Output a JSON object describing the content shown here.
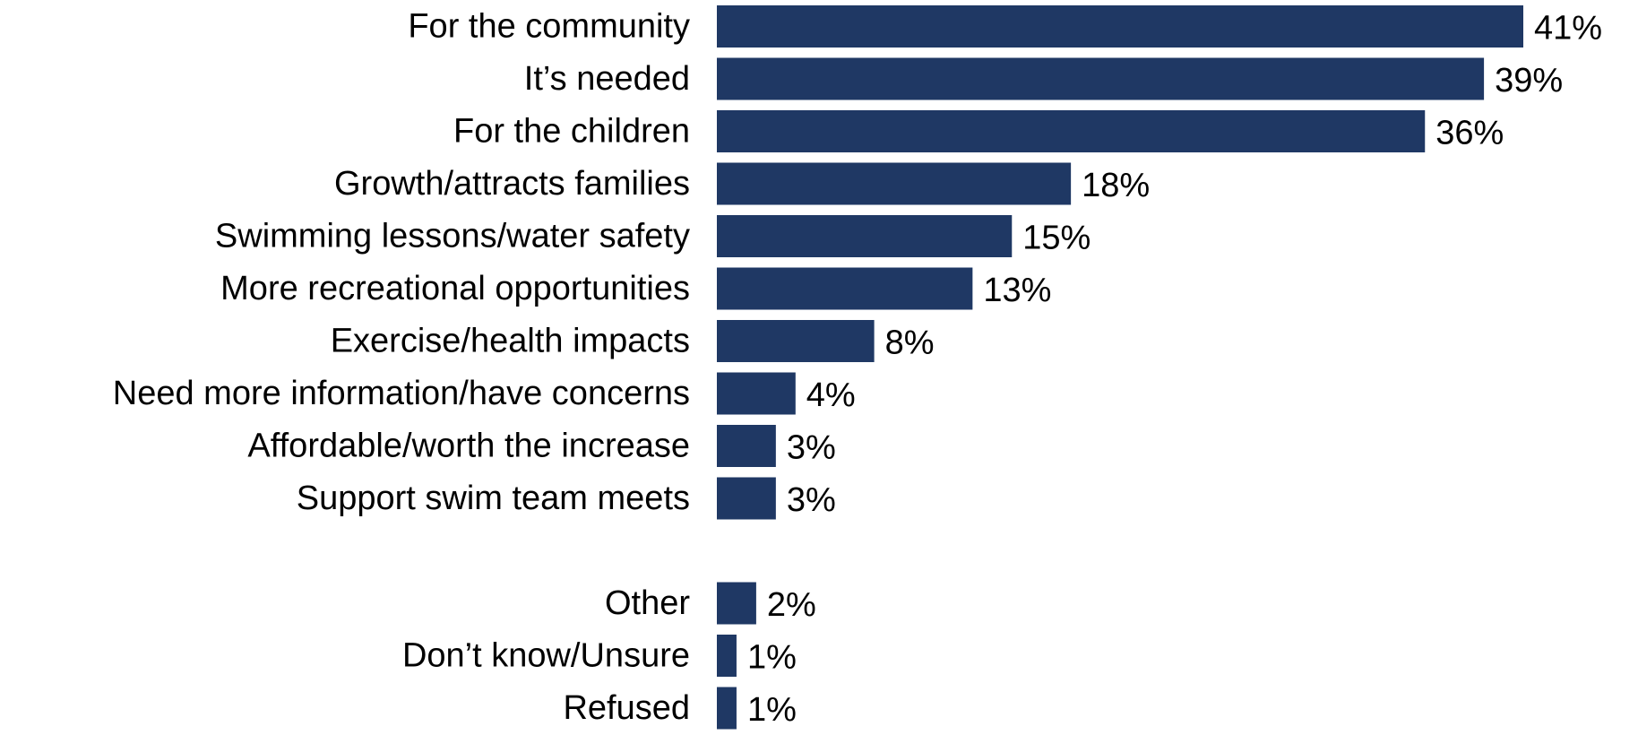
{
  "chart_data": {
    "type": "bar",
    "orientation": "horizontal",
    "title": "",
    "xlabel": "",
    "ylabel": "",
    "grid": false,
    "legend": "none",
    "value_format": "percent",
    "xlim": [
      0,
      41
    ],
    "colors": {
      "bar": "#1f3864",
      "text": "#000000",
      "background": "#ffffff"
    },
    "groups": [
      {
        "categories": [
          "For the community",
          "It’s needed",
          "For the children",
          "Growth/attracts families",
          "Swimming lessons/water safety",
          "More recreational opportunities",
          "Exercise/health impacts",
          "Need more information/have concerns",
          "Affordable/worth the increase",
          "Support swim team meets"
        ],
        "values": [
          41,
          39,
          36,
          18,
          15,
          13,
          8,
          4,
          3,
          3
        ],
        "labels": [
          "41%",
          "39%",
          "36%",
          "18%",
          "15%",
          "13%",
          "8%",
          "4%",
          "3%",
          "3%"
        ]
      },
      {
        "categories": [
          "Other",
          "Don’t know/Unsure",
          "Refused"
        ],
        "values": [
          2,
          1,
          1
        ],
        "labels": [
          "2%",
          "1%",
          "1%"
        ]
      }
    ]
  }
}
